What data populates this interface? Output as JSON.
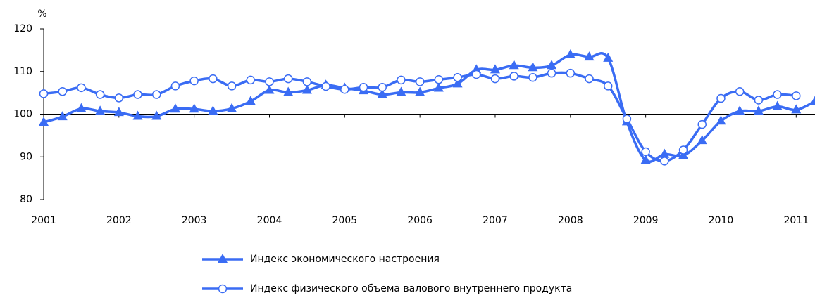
{
  "chart_data": {
    "type": "line",
    "y_label": "%",
    "x": [
      2001,
      2001.25,
      2001.5,
      2001.75,
      2002,
      2002.25,
      2002.5,
      2002.75,
      2003,
      2003.25,
      2003.5,
      2003.75,
      2004,
      2004.25,
      2004.5,
      2004.75,
      2005,
      2005.25,
      2005.5,
      2005.75,
      2006,
      2006.25,
      2006.5,
      2006.75,
      2007,
      2007.25,
      2007.5,
      2007.75,
      2008,
      2008.25,
      2008.5,
      2008.75,
      2009,
      2009.25,
      2009.5,
      2009.75,
      2010,
      2010.25,
      2010.5,
      2010.75,
      2011,
      2011.25
    ],
    "series": [
      {
        "name": "Индекс экономического настроения",
        "color": "#3a6cf4",
        "marker": "triangle",
        "values": [
          98.1,
          99.4,
          101.3,
          100.7,
          100.4,
          99.5,
          99.5,
          101.2,
          101.2,
          100.7,
          101.3,
          103,
          105.6,
          105.1,
          105.6,
          106.8,
          106.1,
          105.5,
          104.6,
          105.1,
          105.1,
          106.1,
          107.1,
          110.4,
          110.4,
          111.4,
          110.9,
          111.4,
          113.9,
          113.4,
          113.1,
          98.2,
          89.2,
          90.6,
          90.3,
          93.8,
          98.4,
          100.7,
          100.7,
          101.8,
          101,
          103
        ]
      },
      {
        "name": "Индекс физического объема валового внутреннего продукта",
        "color": "#3a6cf4",
        "marker": "circle",
        "values": [
          104.8,
          105.3,
          106.2,
          104.6,
          103.8,
          104.6,
          104.6,
          106.6,
          107.8,
          108.3,
          106.6,
          108,
          107.6,
          108.3,
          107.6,
          106.5,
          105.8,
          106.3,
          106.3,
          108,
          107.6,
          108.1,
          108.6,
          109.3,
          108.3,
          108.9,
          108.6,
          109.6,
          109.6,
          108.3,
          106.6,
          98.9,
          91.2,
          89,
          91.6,
          97.6,
          103.7,
          105.3,
          103.3,
          104.6,
          104.3,
          null
        ]
      }
    ],
    "xlim": [
      2001,
      2011.25
    ],
    "xticks": [
      2001,
      2002,
      2003,
      2004,
      2005,
      2006,
      2007,
      2008,
      2009,
      2010,
      2011
    ],
    "ylim": [
      80,
      120
    ],
    "yticks": [
      80,
      90,
      100,
      110,
      120
    ],
    "baseline": 100,
    "legend": "bottom"
  }
}
